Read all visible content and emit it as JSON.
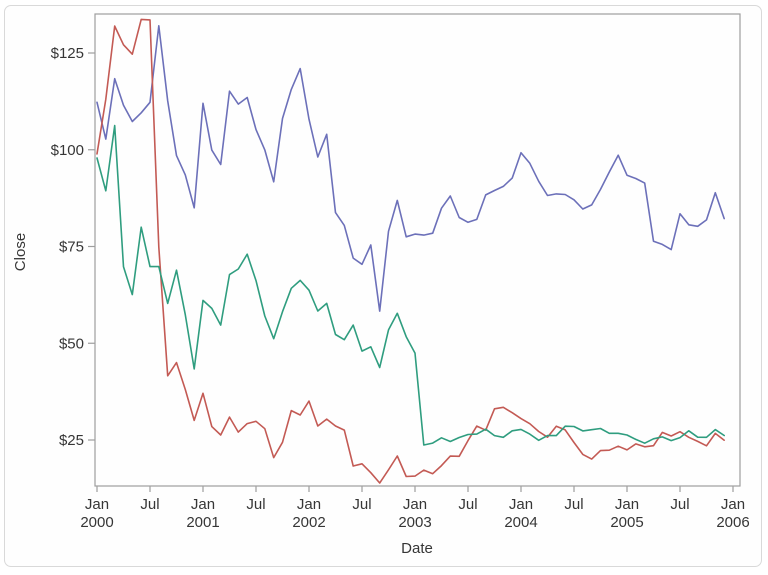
{
  "chart_data": {
    "type": "line",
    "title": "",
    "xlabel": "Date",
    "ylabel": "Close",
    "grid": false,
    "legend_position": "none",
    "x_range": "monthly from Jan 2000 to Dec 2005",
    "months_per_point": 1,
    "ylim": [
      13,
      135.5
    ],
    "y_axis": {
      "label": "Close",
      "ticks": [
        {
          "value": 25,
          "label": "$25"
        },
        {
          "value": 50,
          "label": "$50"
        },
        {
          "value": 75,
          "label": "$75"
        },
        {
          "value": 100,
          "label": "$100"
        },
        {
          "value": 125,
          "label": "$125"
        }
      ]
    },
    "x_axis": {
      "label": "Date",
      "ticks": [
        {
          "month_index": 0,
          "label": "Jan",
          "year": "2000"
        },
        {
          "month_index": 6,
          "label": "Jul",
          "year": ""
        },
        {
          "month_index": 12,
          "label": "Jan",
          "year": "2001"
        },
        {
          "month_index": 18,
          "label": "Jul",
          "year": ""
        },
        {
          "month_index": 24,
          "label": "Jan",
          "year": "2002"
        },
        {
          "month_index": 30,
          "label": "Jul",
          "year": ""
        },
        {
          "month_index": 36,
          "label": "Jan",
          "year": "2003"
        },
        {
          "month_index": 42,
          "label": "Jul",
          "year": ""
        },
        {
          "month_index": 48,
          "label": "Jan",
          "year": "2004"
        },
        {
          "month_index": 54,
          "label": "Jul",
          "year": ""
        },
        {
          "month_index": 60,
          "label": "Jan",
          "year": "2005"
        },
        {
          "month_index": 66,
          "label": "Jul",
          "year": ""
        },
        {
          "month_index": 72,
          "label": "Jan",
          "year": "2006"
        }
      ]
    },
    "series": [
      {
        "name": "series-blue",
        "color": "#6c70b9",
        "values": [
          112.25,
          102.75,
          118.37,
          111.5,
          107.31,
          109.56,
          112.25,
          132.02,
          112.62,
          98.5,
          93.5,
          85.0,
          112.0,
          99.9,
          96.18,
          115.14,
          111.8,
          113.5,
          105.21,
          99.95,
          91.72,
          108.07,
          115.59,
          120.96,
          107.89,
          98.12,
          104.0,
          83.76,
          80.45,
          72.0,
          70.4,
          75.38,
          58.31,
          78.94,
          86.92,
          77.5,
          78.2,
          77.95,
          78.43,
          84.9,
          88.04,
          82.5,
          81.25,
          82.01,
          88.33,
          89.48,
          90.54,
          92.68,
          99.23,
          96.5,
          91.84,
          88.17,
          88.59,
          88.44,
          87.07,
          84.69,
          85.74,
          89.75,
          94.24,
          98.58,
          93.42,
          92.58,
          91.38,
          76.38,
          75.55,
          74.2,
          83.46,
          80.62,
          80.22,
          81.88,
          88.9,
          82.2
        ]
      },
      {
        "name": "series-red",
        "color": "#c35a54",
        "values": [
          98.94,
          113.06,
          131.94,
          127.13,
          124.69,
          133.69,
          133.56,
          74.88,
          41.6,
          45.0,
          38.06,
          30.06,
          37.06,
          28.46,
          26.29,
          30.91,
          27.03,
          29.25,
          29.84,
          27.93,
          20.45,
          24.4,
          32.59,
          31.45,
          35.06,
          28.63,
          30.4,
          28.63,
          27.55,
          18.27,
          18.86,
          16.55,
          13.89,
          17.3,
          20.87,
          15.57,
          15.66,
          17.23,
          16.28,
          18.38,
          20.84,
          20.8,
          24.85,
          28.58,
          27.52,
          33.06,
          33.45,
          32.05,
          30.52,
          29.22,
          27.2,
          25.73,
          28.56,
          27.6,
          24.35,
          21.29,
          20.06,
          22.26,
          22.36,
          23.39,
          22.45,
          23.99,
          23.23,
          23.52,
          26.96,
          26.03,
          27.15,
          25.71,
          24.65,
          23.5,
          26.71,
          24.96
        ]
      },
      {
        "name": "series-green",
        "color": "#2f9d7f",
        "values": [
          97.88,
          89.38,
          106.25,
          69.75,
          62.56,
          80.0,
          69.81,
          69.81,
          60.31,
          68.88,
          57.38,
          43.38,
          61.06,
          59.0,
          54.69,
          67.75,
          69.18,
          73.0,
          66.19,
          57.05,
          51.17,
          58.15,
          64.21,
          66.25,
          63.7,
          58.34,
          60.31,
          52.26,
          50.91,
          54.7,
          47.98,
          49.07,
          43.74,
          53.46,
          57.74,
          51.7,
          47.46,
          23.7,
          24.21,
          25.57,
          24.61,
          25.64,
          26.41,
          26.52,
          27.8,
          26.14,
          25.71,
          27.37,
          27.73,
          26.53,
          24.93,
          26.13,
          26.13,
          28.56,
          28.49,
          27.35,
          27.65,
          27.97,
          26.72,
          26.72,
          26.28,
          25.16,
          24.17,
          25.3,
          25.8,
          24.84,
          25.61,
          27.39,
          25.73,
          25.7,
          27.68,
          26.15
        ]
      }
    ]
  },
  "style": {
    "axis_color": "#9e9e9e",
    "text_color": "#363636",
    "background": "#ffffff",
    "card_border": "#d9d9d9"
  }
}
